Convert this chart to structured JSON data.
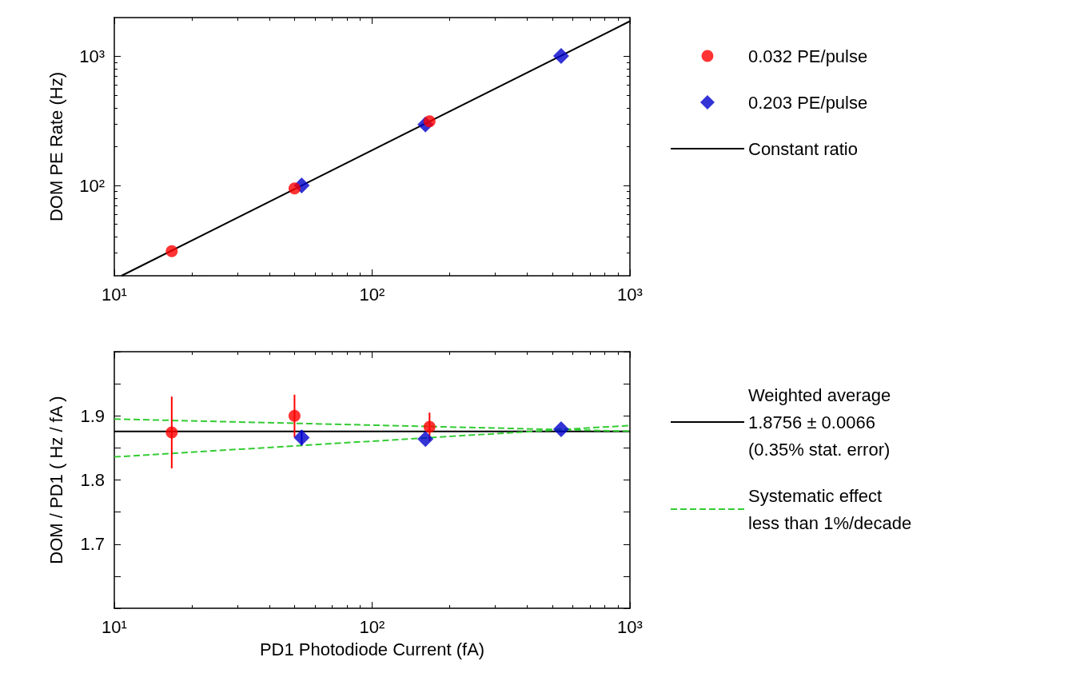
{
  "chart_data": [
    {
      "type": "scatter",
      "ylabel": "DOM PE Rate (Hz)",
      "log": "xy",
      "grid": false,
      "legend": "right",
      "xlim": [
        10,
        1000
      ],
      "xticks": [
        {
          "value": 10,
          "label": "10¹"
        },
        {
          "value": 100,
          "label": "10²"
        },
        {
          "value": 1000,
          "label": "10³"
        }
      ],
      "ylim": [
        20,
        2000
      ],
      "yticks": [
        {
          "value": 100,
          "label": "10²"
        },
        {
          "value": 1000,
          "label": "10³"
        }
      ],
      "series": [
        {
          "name": "0.032 PE/pulse",
          "type": "scatter",
          "marker": "circle",
          "color": "#ff0000",
          "x": [
            16.7,
            50,
            167
          ],
          "values": [
            31,
            95,
            315
          ]
        },
        {
          "name": "0.203 PE/pulse",
          "type": "scatter",
          "marker": "diamond",
          "color": "#0000cc",
          "x": [
            53.3,
            161,
            541
          ],
          "values": [
            100,
            297,
            1010
          ]
        },
        {
          "name": "Constant ratio",
          "type": "line",
          "line_style": "solid",
          "marker": "none",
          "color": "#000000",
          "x": [
            10.66,
            1000
          ],
          "values": [
            20,
            1875.6
          ]
        }
      ]
    },
    {
      "type": "scatter",
      "xlabel": "PD1 Photodiode Current (fA)",
      "ylabel": "DOM / PD1 ( Hz / fA )",
      "log": "x",
      "grid": false,
      "legend": "right",
      "xlim": [
        10,
        1000
      ],
      "xticks": [
        {
          "value": 10,
          "label": "10¹"
        },
        {
          "value": 100,
          "label": "10²"
        },
        {
          "value": 1000,
          "label": "10³"
        }
      ],
      "ylim": [
        1.6,
        2.0
      ],
      "yticks": [
        {
          "value": 1.6,
          "label": null
        },
        {
          "value": 1.65,
          "label": null
        },
        1.7,
        {
          "value": 1.75,
          "label": null
        },
        1.8,
        {
          "value": 1.85,
          "label": null
        },
        1.9,
        {
          "value": 1.95,
          "label": null
        },
        {
          "value": 2.0,
          "label": null
        }
      ],
      "series": [
        {
          "type": "scatter",
          "marker": "circle",
          "color": "#ff0000",
          "x": [
            16.7,
            50,
            167
          ],
          "values": [
            1.874,
            1.9,
            1.883
          ],
          "errors": [
            0.056,
            0.033,
            0.022
          ]
        },
        {
          "type": "scatter",
          "marker": "diamond",
          "color": "#0000cc",
          "x": [
            53.3,
            161,
            541
          ],
          "values": [
            1.866,
            1.864,
            1.879
          ],
          "errors": [
            0.012,
            null,
            null
          ]
        },
        {
          "name": "Weighted average\n1.8756 ± 0.0066\n(0.35% stat. error)",
          "type": "line",
          "line_style": "solid",
          "marker": "none",
          "color": "#000000",
          "x": [
            10,
            1000
          ],
          "values": [
            1.8756,
            1.8756
          ]
        },
        {
          "name": "Systematic effect\nless than 1%/decade",
          "type": "line",
          "line_style": "dashed",
          "marker": "none",
          "color": "#33cc33",
          "x": [
            10,
            1000
          ],
          "values": [
            1.895,
            1.876
          ]
        },
        {
          "type": "line",
          "line_style": "dashed",
          "marker": "none",
          "color": "#33cc33",
          "x": [
            10,
            1000
          ],
          "values": [
            1.836,
            1.885
          ]
        }
      ]
    }
  ]
}
